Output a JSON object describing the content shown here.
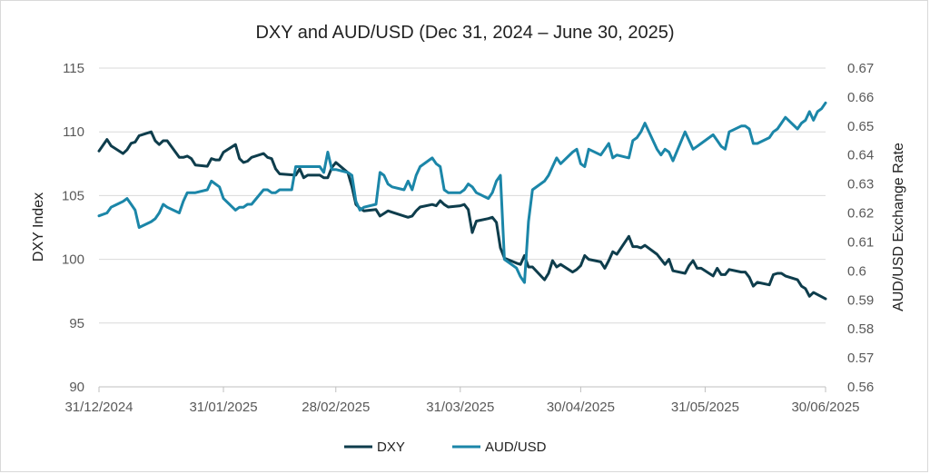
{
  "chart_data": {
    "type": "line",
    "title": "DXY and AUD/USD (Dec 31, 2024 – June 30, 2025)",
    "ylabel_left": "DXY Index",
    "ylabel_right": "AUD/USD Exchange Rate",
    "ylim_left": [
      90,
      115
    ],
    "ylim_right": [
      0.56,
      0.67
    ],
    "yticks_left": [
      "90",
      "95",
      "100",
      "105",
      "110",
      "115"
    ],
    "yticks_right": [
      "0.56",
      "0.57",
      "0.58",
      "0.59",
      "0.6",
      "0.61",
      "0.62",
      "0.63",
      "0.64",
      "0.65",
      "0.66",
      "0.67"
    ],
    "xticks": [
      "31/12/2024",
      "31/01/2025",
      "28/02/2025",
      "31/03/2025",
      "30/04/2025",
      "31/05/2025",
      "30/06/2025"
    ],
    "xlim": [
      "2024-12-31",
      "2025-06-30"
    ],
    "grid": true,
    "legend_position": "bottom",
    "series": [
      {
        "name": "DXY",
        "axis": "left",
        "color": "#0e3d4c",
        "points": [
          [
            "2024-12-31",
            108.5
          ],
          [
            "2025-01-02",
            109.4
          ],
          [
            "2025-01-03",
            108.9
          ],
          [
            "2025-01-06",
            108.3
          ],
          [
            "2025-01-07",
            108.6
          ],
          [
            "2025-01-08",
            109.1
          ],
          [
            "2025-01-09",
            109.2
          ],
          [
            "2025-01-10",
            109.7
          ],
          [
            "2025-01-13",
            110.0
          ],
          [
            "2025-01-14",
            109.3
          ],
          [
            "2025-01-15",
            109.0
          ],
          [
            "2025-01-16",
            109.3
          ],
          [
            "2025-01-17",
            109.3
          ],
          [
            "2025-01-20",
            108.0
          ],
          [
            "2025-01-21",
            108.0
          ],
          [
            "2025-01-22",
            108.1
          ],
          [
            "2025-01-23",
            107.9
          ],
          [
            "2025-01-24",
            107.4
          ],
          [
            "2025-01-27",
            107.3
          ],
          [
            "2025-01-28",
            107.9
          ],
          [
            "2025-01-29",
            107.8
          ],
          [
            "2025-01-30",
            107.8
          ],
          [
            "2025-01-31",
            108.4
          ],
          [
            "2025-02-03",
            109.0
          ],
          [
            "2025-02-04",
            107.9
          ],
          [
            "2025-02-05",
            107.6
          ],
          [
            "2025-02-06",
            107.7
          ],
          [
            "2025-02-07",
            108.0
          ],
          [
            "2025-02-10",
            108.3
          ],
          [
            "2025-02-11",
            108.0
          ],
          [
            "2025-02-12",
            107.9
          ],
          [
            "2025-02-13",
            107.1
          ],
          [
            "2025-02-14",
            106.7
          ],
          [
            "2025-02-18",
            106.6
          ],
          [
            "2025-02-19",
            107.1
          ],
          [
            "2025-02-20",
            106.4
          ],
          [
            "2025-02-21",
            106.6
          ],
          [
            "2025-02-24",
            106.6
          ],
          [
            "2025-02-25",
            106.4
          ],
          [
            "2025-02-26",
            106.4
          ],
          [
            "2025-02-27",
            107.2
          ],
          [
            "2025-02-28",
            107.6
          ],
          [
            "2025-03-03",
            106.8
          ],
          [
            "2025-03-04",
            105.7
          ],
          [
            "2025-03-05",
            104.3
          ],
          [
            "2025-03-06",
            104.0
          ],
          [
            "2025-03-07",
            103.8
          ],
          [
            "2025-03-10",
            103.9
          ],
          [
            "2025-03-11",
            103.4
          ],
          [
            "2025-03-12",
            103.6
          ],
          [
            "2025-03-13",
            103.8
          ],
          [
            "2025-03-14",
            103.7
          ],
          [
            "2025-03-17",
            103.4
          ],
          [
            "2025-03-18",
            103.3
          ],
          [
            "2025-03-19",
            103.4
          ],
          [
            "2025-03-20",
            103.8
          ],
          [
            "2025-03-21",
            104.1
          ],
          [
            "2025-03-24",
            104.3
          ],
          [
            "2025-03-25",
            104.2
          ],
          [
            "2025-03-26",
            104.6
          ],
          [
            "2025-03-27",
            104.3
          ],
          [
            "2025-03-28",
            104.1
          ],
          [
            "2025-03-31",
            104.2
          ],
          [
            "2025-04-01",
            104.3
          ],
          [
            "2025-04-02",
            103.9
          ],
          [
            "2025-04-03",
            102.1
          ],
          [
            "2025-04-04",
            103.0
          ],
          [
            "2025-04-07",
            103.2
          ],
          [
            "2025-04-08",
            103.3
          ],
          [
            "2025-04-09",
            102.9
          ],
          [
            "2025-04-10",
            100.9
          ],
          [
            "2025-04-11",
            100.1
          ],
          [
            "2025-04-14",
            99.7
          ],
          [
            "2025-04-15",
            99.6
          ],
          [
            "2025-04-16",
            100.3
          ],
          [
            "2025-04-17",
            99.4
          ],
          [
            "2025-04-18",
            99.4
          ],
          [
            "2025-04-21",
            98.4
          ],
          [
            "2025-04-22",
            98.9
          ],
          [
            "2025-04-23",
            99.9
          ],
          [
            "2025-04-24",
            99.4
          ],
          [
            "2025-04-25",
            99.6
          ],
          [
            "2025-04-28",
            99.0
          ],
          [
            "2025-04-29",
            99.2
          ],
          [
            "2025-04-30",
            99.5
          ],
          [
            "2025-05-01",
            100.3
          ],
          [
            "2025-05-02",
            100.0
          ],
          [
            "2025-05-05",
            99.8
          ],
          [
            "2025-05-06",
            99.3
          ],
          [
            "2025-05-07",
            99.9
          ],
          [
            "2025-05-08",
            100.6
          ],
          [
            "2025-05-09",
            100.4
          ],
          [
            "2025-05-12",
            101.8
          ],
          [
            "2025-05-13",
            101.0
          ],
          [
            "2025-05-14",
            101.0
          ],
          [
            "2025-05-15",
            100.9
          ],
          [
            "2025-05-16",
            101.1
          ],
          [
            "2025-05-19",
            100.4
          ],
          [
            "2025-05-20",
            100.0
          ],
          [
            "2025-05-21",
            99.6
          ],
          [
            "2025-05-22",
            100.0
          ],
          [
            "2025-05-23",
            99.1
          ],
          [
            "2025-05-26",
            98.9
          ],
          [
            "2025-05-27",
            99.5
          ],
          [
            "2025-05-28",
            99.9
          ],
          [
            "2025-05-29",
            99.3
          ],
          [
            "2025-05-30",
            99.3
          ],
          [
            "2025-06-02",
            98.7
          ],
          [
            "2025-06-03",
            99.3
          ],
          [
            "2025-06-04",
            98.8
          ],
          [
            "2025-06-05",
            98.8
          ],
          [
            "2025-06-06",
            99.2
          ],
          [
            "2025-06-09",
            99.0
          ],
          [
            "2025-06-10",
            99.0
          ],
          [
            "2025-06-11",
            98.6
          ],
          [
            "2025-06-12",
            97.9
          ],
          [
            "2025-06-13",
            98.2
          ],
          [
            "2025-06-16",
            98.0
          ],
          [
            "2025-06-17",
            98.8
          ],
          [
            "2025-06-18",
            98.9
          ],
          [
            "2025-06-19",
            98.9
          ],
          [
            "2025-06-20",
            98.7
          ],
          [
            "2025-06-23",
            98.4
          ],
          [
            "2025-06-24",
            97.9
          ],
          [
            "2025-06-25",
            97.7
          ],
          [
            "2025-06-26",
            97.1
          ],
          [
            "2025-06-27",
            97.4
          ],
          [
            "2025-06-30",
            96.9
          ]
        ]
      },
      {
        "name": "AUD/USD",
        "axis": "right",
        "color": "#1b86a8",
        "points": [
          [
            "2024-12-31",
            0.619
          ],
          [
            "2025-01-02",
            0.62
          ],
          [
            "2025-01-03",
            0.622
          ],
          [
            "2025-01-06",
            0.624
          ],
          [
            "2025-01-07",
            0.625
          ],
          [
            "2025-01-08",
            0.623
          ],
          [
            "2025-01-09",
            0.621
          ],
          [
            "2025-01-10",
            0.615
          ],
          [
            "2025-01-13",
            0.617
          ],
          [
            "2025-01-14",
            0.618
          ],
          [
            "2025-01-15",
            0.62
          ],
          [
            "2025-01-16",
            0.623
          ],
          [
            "2025-01-17",
            0.622
          ],
          [
            "2025-01-20",
            0.62
          ],
          [
            "2025-01-21",
            0.624
          ],
          [
            "2025-01-22",
            0.627
          ],
          [
            "2025-01-23",
            0.627
          ],
          [
            "2025-01-24",
            0.627
          ],
          [
            "2025-01-27",
            0.628
          ],
          [
            "2025-01-28",
            0.631
          ],
          [
            "2025-01-29",
            0.63
          ],
          [
            "2025-01-30",
            0.629
          ],
          [
            "2025-01-31",
            0.625
          ],
          [
            "2025-02-03",
            0.621
          ],
          [
            "2025-02-04",
            0.622
          ],
          [
            "2025-02-05",
            0.622
          ],
          [
            "2025-02-06",
            0.623
          ],
          [
            "2025-02-07",
            0.623
          ],
          [
            "2025-02-10",
            0.628
          ],
          [
            "2025-02-11",
            0.628
          ],
          [
            "2025-02-12",
            0.627
          ],
          [
            "2025-02-13",
            0.627
          ],
          [
            "2025-02-14",
            0.628
          ],
          [
            "2025-02-17",
            0.628
          ],
          [
            "2025-02-18",
            0.636
          ],
          [
            "2025-02-19",
            0.636
          ],
          [
            "2025-02-20",
            0.636
          ],
          [
            "2025-02-21",
            0.636
          ],
          [
            "2025-02-24",
            0.636
          ],
          [
            "2025-02-25",
            0.634
          ],
          [
            "2025-02-26",
            0.641
          ],
          [
            "2025-02-27",
            0.635
          ],
          [
            "2025-02-28",
            0.635
          ],
          [
            "2025-03-03",
            0.634
          ],
          [
            "2025-03-04",
            0.633
          ],
          [
            "2025-03-05",
            0.624
          ],
          [
            "2025-03-06",
            0.621
          ],
          [
            "2025-03-07",
            0.622
          ],
          [
            "2025-03-10",
            0.623
          ],
          [
            "2025-03-11",
            0.634
          ],
          [
            "2025-03-12",
            0.633
          ],
          [
            "2025-03-13",
            0.63
          ],
          [
            "2025-03-14",
            0.629
          ],
          [
            "2025-03-17",
            0.628
          ],
          [
            "2025-03-18",
            0.631
          ],
          [
            "2025-03-19",
            0.628
          ],
          [
            "2025-03-20",
            0.633
          ],
          [
            "2025-03-21",
            0.636
          ],
          [
            "2025-03-24",
            0.639
          ],
          [
            "2025-03-25",
            0.637
          ],
          [
            "2025-03-26",
            0.636
          ],
          [
            "2025-03-27",
            0.628
          ],
          [
            "2025-03-28",
            0.627
          ],
          [
            "2025-03-31",
            0.627
          ],
          [
            "2025-04-01",
            0.628
          ],
          [
            "2025-04-02",
            0.63
          ],
          [
            "2025-04-03",
            0.629
          ],
          [
            "2025-04-04",
            0.627
          ],
          [
            "2025-04-07",
            0.625
          ],
          [
            "2025-04-08",
            0.627
          ],
          [
            "2025-04-09",
            0.631
          ],
          [
            "2025-04-10",
            0.633
          ],
          [
            "2025-04-11",
            0.604
          ],
          [
            "2025-04-14",
            0.601
          ],
          [
            "2025-04-15",
            0.598
          ],
          [
            "2025-04-16",
            0.596
          ],
          [
            "2025-04-17",
            0.617
          ],
          [
            "2025-04-18",
            0.628
          ],
          [
            "2025-04-21",
            0.631
          ],
          [
            "2025-04-22",
            0.633
          ],
          [
            "2025-04-23",
            0.636
          ],
          [
            "2025-04-24",
            0.639
          ],
          [
            "2025-04-25",
            0.637
          ],
          [
            "2025-04-28",
            0.641
          ],
          [
            "2025-04-29",
            0.642
          ],
          [
            "2025-04-30",
            0.637
          ],
          [
            "2025-05-01",
            0.636
          ],
          [
            "2025-05-02",
            0.642
          ],
          [
            "2025-05-05",
            0.64
          ],
          [
            "2025-05-06",
            0.642
          ],
          [
            "2025-05-07",
            0.644
          ],
          [
            "2025-05-08",
            0.639
          ],
          [
            "2025-05-09",
            0.64
          ],
          [
            "2025-05-12",
            0.639
          ],
          [
            "2025-05-13",
            0.645
          ],
          [
            "2025-05-14",
            0.646
          ],
          [
            "2025-05-15",
            0.648
          ],
          [
            "2025-05-16",
            0.651
          ],
          [
            "2025-05-19",
            0.642
          ],
          [
            "2025-05-20",
            0.64
          ],
          [
            "2025-05-21",
            0.642
          ],
          [
            "2025-05-22",
            0.641
          ],
          [
            "2025-05-23",
            0.638
          ],
          [
            "2025-05-26",
            0.648
          ],
          [
            "2025-05-27",
            0.645
          ],
          [
            "2025-05-28",
            0.642
          ],
          [
            "2025-05-29",
            0.643
          ],
          [
            "2025-05-30",
            0.644
          ],
          [
            "2025-06-02",
            0.647
          ],
          [
            "2025-06-03",
            0.645
          ],
          [
            "2025-06-04",
            0.643
          ],
          [
            "2025-06-05",
            0.642
          ],
          [
            "2025-06-06",
            0.648
          ],
          [
            "2025-06-09",
            0.65
          ],
          [
            "2025-06-10",
            0.65
          ],
          [
            "2025-06-11",
            0.649
          ],
          [
            "2025-06-12",
            0.644
          ],
          [
            "2025-06-13",
            0.644
          ],
          [
            "2025-06-16",
            0.646
          ],
          [
            "2025-06-17",
            0.648
          ],
          [
            "2025-06-18",
            0.649
          ],
          [
            "2025-06-19",
            0.651
          ],
          [
            "2025-06-20",
            0.653
          ],
          [
            "2025-06-23",
            0.649
          ],
          [
            "2025-06-24",
            0.651
          ],
          [
            "2025-06-25",
            0.652
          ],
          [
            "2025-06-26",
            0.655
          ],
          [
            "2025-06-27",
            0.652
          ],
          [
            "2025-06-28",
            0.655
          ],
          [
            "2025-06-29",
            0.656
          ],
          [
            "2025-06-30",
            0.658
          ]
        ]
      }
    ]
  }
}
